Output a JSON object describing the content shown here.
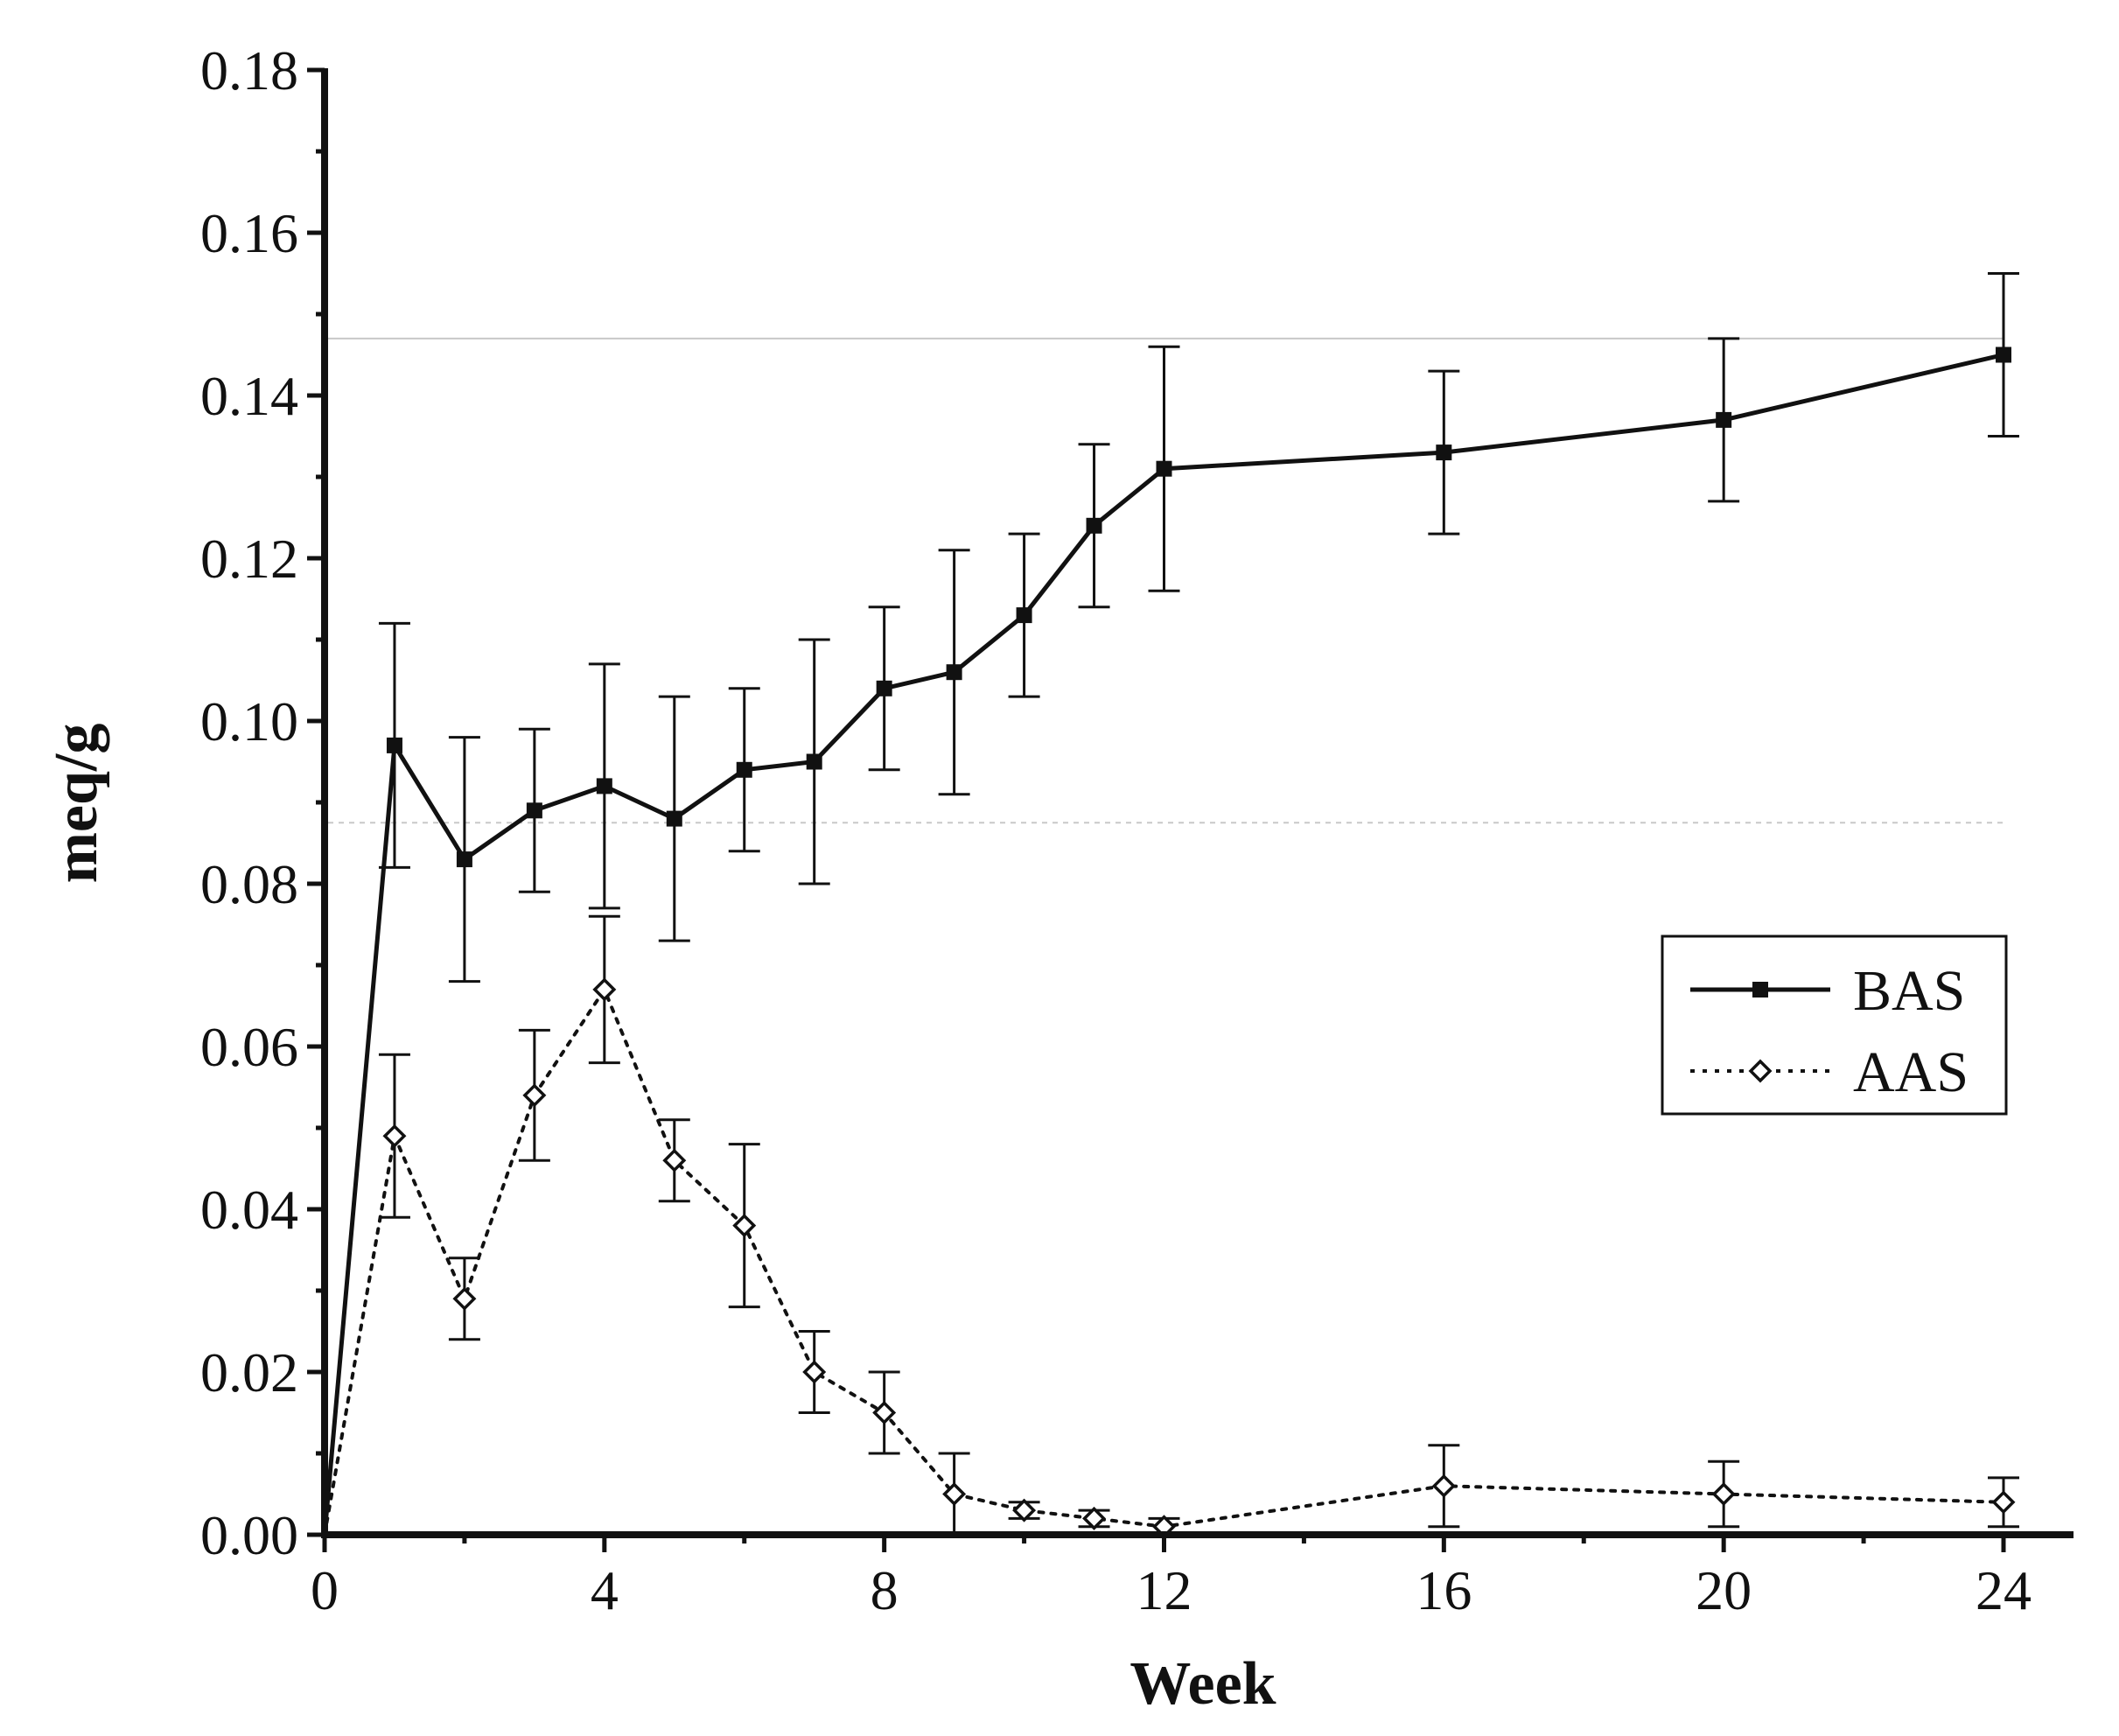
{
  "chart_data": {
    "type": "line",
    "title": "",
    "xlabel": "Week",
    "ylabel": "meq/g",
    "xlim": [
      0,
      25
    ],
    "ylim": [
      0,
      0.18
    ],
    "xticks": [
      "0",
      "4",
      "8",
      "12",
      "16",
      "20",
      "24"
    ],
    "yticks": [
      "0.00",
      "0.02",
      "0.04",
      "0.06",
      "0.08",
      "0.10",
      "0.12",
      "0.14",
      "0.16",
      "0.18"
    ],
    "reference_lines": [
      0.147,
      0.0875
    ],
    "legend_position": "right",
    "series": [
      {
        "name": "BAS",
        "marker": "square-filled",
        "line": "solid",
        "x": [
          0,
          1,
          2,
          3,
          4,
          5,
          6,
          7,
          8,
          9,
          10,
          11,
          12,
          16,
          20,
          24
        ],
        "values": [
          0.0,
          0.097,
          0.083,
          0.089,
          0.092,
          0.088,
          0.094,
          0.095,
          0.104,
          0.106,
          0.113,
          0.124,
          0.131,
          0.133,
          0.137,
          0.145
        ],
        "errors": [
          0,
          0.015,
          0.015,
          0.01,
          0.015,
          0.015,
          0.01,
          0.015,
          0.01,
          0.015,
          0.01,
          0.01,
          0.015,
          0.01,
          0.01,
          0.01
        ]
      },
      {
        "name": "AAS",
        "marker": "diamond-open",
        "line": "dotted",
        "x": [
          0,
          1,
          2,
          3,
          4,
          5,
          6,
          7,
          8,
          9,
          10,
          11,
          12,
          16,
          20,
          24
        ],
        "values": [
          0.0,
          0.049,
          0.029,
          0.054,
          0.067,
          0.046,
          0.038,
          0.02,
          0.015,
          0.005,
          0.003,
          0.002,
          0.001,
          0.006,
          0.005,
          0.004
        ],
        "errors": [
          0,
          0.01,
          0.005,
          0.008,
          0.009,
          0.005,
          0.01,
          0.005,
          0.005,
          0.005,
          0.001,
          0.001,
          0.001,
          0.005,
          0.004,
          0.003
        ]
      }
    ]
  }
}
